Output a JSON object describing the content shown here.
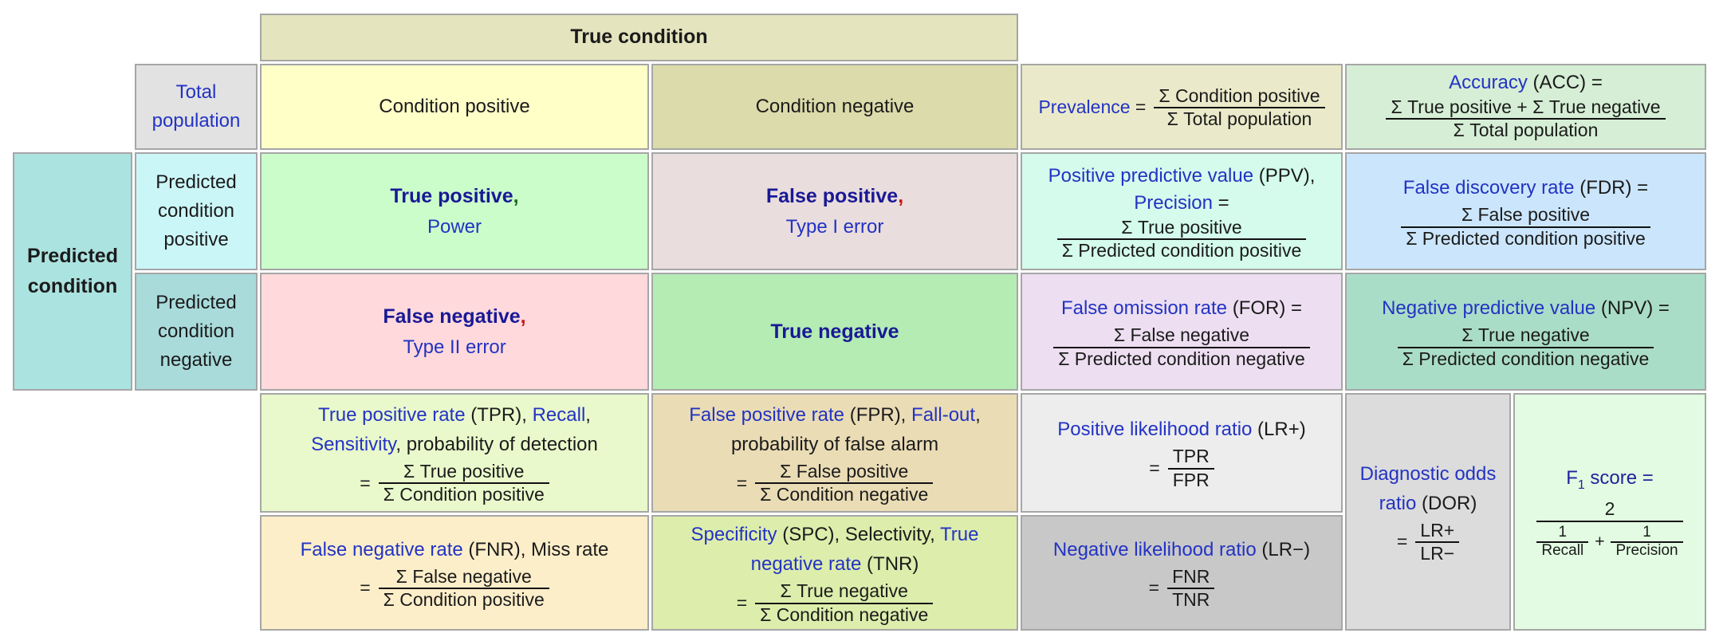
{
  "palette": {
    "border_gray": "#a6a6a6",
    "link_blue": "#2333c3",
    "term_navy": "#191995",
    "comma_red": "#cc1111",
    "comma_green": "#156915",
    "true_condition_bg": "#e4e4be",
    "total_population_bg": "#e2e2e2",
    "condition_positive_bg": "#ffffc8",
    "condition_negative_bg": "#dbdbab",
    "prevalence_bg": "#eaeaca",
    "accuracy_bg": "#d5eed5",
    "predicted_condition_bg": "#abe3e0",
    "predicted_positive_bg": "#cbf6f8",
    "predicted_negative_bg": "#a9dbdb",
    "true_positive_bg": "#cbfdcb",
    "false_positive_bg": "#eadddd",
    "false_negative_bg": "#ffd9dc",
    "true_negative_bg": "#b4ecb4",
    "ppv_bg": "#d4fbec",
    "fdr_bg": "#cbe6fc",
    "for_bg": "#eddff1",
    "npv_bg": "#aaddc8",
    "tpr_bg": "#e9f9cb",
    "fpr_bg": "#eadcb5",
    "fnr_bg": "#fceec9",
    "spc_bg": "#ddedac",
    "lr_pos_bg": "#ededed",
    "lr_neg_bg": "#c8c8c8",
    "dor_bg": "#dcdcdc",
    "f1_bg": "#e2fbe2"
  },
  "table": {
    "true_condition": "True condition",
    "predicted_condition": "Predicted condition",
    "total_population": "Total population",
    "condition_positive": "Condition positive",
    "condition_negative": "Condition negative",
    "predicted_positive": "Predicted condition positive",
    "predicted_negative": "Predicted condition negative",
    "prevalence": {
      "lead": [
        {
          "t": "Prevalence",
          "s": "link"
        },
        {
          "t": " = ",
          "s": "blk"
        }
      ],
      "num": "Σ Condition positive",
      "den": "Σ Total population"
    },
    "accuracy": {
      "title": [
        {
          "t": "Accuracy",
          "s": "link"
        },
        {
          "t": " (ACC) =",
          "s": "blk"
        }
      ],
      "num": "Σ True positive + Σ True negative",
      "den": "Σ Total population"
    },
    "tp": {
      "title": [
        {
          "t": "True positive",
          "s": "navy"
        },
        {
          "t": ",",
          "s": "green"
        }
      ],
      "sub": [
        {
          "t": "Power",
          "s": "link"
        }
      ]
    },
    "fp": {
      "title": [
        {
          "t": "False positive",
          "s": "navy"
        },
        {
          "t": ",",
          "s": "red"
        }
      ],
      "sub": [
        {
          "t": "Type I error",
          "s": "link"
        }
      ]
    },
    "fn": {
      "title": [
        {
          "t": "False negative",
          "s": "navy"
        },
        {
          "t": ",",
          "s": "red"
        }
      ],
      "sub": [
        {
          "t": "Type II error",
          "s": "link"
        }
      ]
    },
    "tn": {
      "title": [
        {
          "t": "True negative",
          "s": "navy"
        }
      ]
    },
    "ppv": {
      "line1": [
        {
          "t": "Positive predictive value",
          "s": "link"
        },
        {
          "t": " (PPV),",
          "s": "blk"
        }
      ],
      "line2": [
        {
          "t": "Precision",
          "s": "link"
        },
        {
          "t": " =",
          "s": "blk"
        }
      ],
      "num": "Σ True positive",
      "den": "Σ Predicted condition positive"
    },
    "fdr": {
      "title": [
        {
          "t": "False discovery rate",
          "s": "link"
        },
        {
          "t": " (FDR) =",
          "s": "blk"
        }
      ],
      "num": "Σ False positive",
      "den": "Σ Predicted condition positive"
    },
    "false_omission_rate": {
      "title": [
        {
          "t": "False omission rate",
          "s": "link"
        },
        {
          "t": " (FOR) =",
          "s": "blk"
        }
      ],
      "num": "Σ False negative",
      "den": "Σ Predicted condition negative"
    },
    "npv": {
      "title": [
        {
          "t": "Negative predictive value",
          "s": "link"
        },
        {
          "t": " (NPV) =",
          "s": "blk"
        }
      ],
      "num": "Σ True negative",
      "den": "Σ Predicted condition negative"
    },
    "tpr": {
      "line1": [
        {
          "t": "True positive rate",
          "s": "link"
        },
        {
          "t": " (TPR), ",
          "s": "blk"
        },
        {
          "t": "Recall",
          "s": "link"
        },
        {
          "t": ",",
          "s": "blk"
        }
      ],
      "line2": [
        {
          "t": "Sensitivity",
          "s": "link"
        },
        {
          "t": ", probability of detection",
          "s": "blk"
        }
      ],
      "eq": "=",
      "num": "Σ True positive",
      "den": "Σ Condition positive"
    },
    "fpr": {
      "line1": [
        {
          "t": "False positive rate",
          "s": "link"
        },
        {
          "t": " (FPR), ",
          "s": "blk"
        },
        {
          "t": "Fall-out",
          "s": "link"
        },
        {
          "t": ",",
          "s": "blk"
        }
      ],
      "line2": [
        {
          "t": "probability of false alarm",
          "s": "blk"
        }
      ],
      "eq": "=",
      "num": "Σ False positive",
      "den": "Σ Condition negative"
    },
    "fnr": {
      "line1": [
        {
          "t": "False negative rate",
          "s": "link"
        },
        {
          "t": " (FNR), Miss rate",
          "s": "blk"
        }
      ],
      "eq": "=",
      "num": "Σ False negative",
      "den": "Σ Condition positive"
    },
    "spc": {
      "line1": [
        {
          "t": "Specificity",
          "s": "link"
        },
        {
          "t": " (SPC), Selectivity, ",
          "s": "blk"
        },
        {
          "t": "True",
          "s": "link"
        }
      ],
      "line2": [
        {
          "t": "negative rate",
          "s": "link"
        },
        {
          "t": " (TNR)",
          "s": "blk"
        }
      ],
      "eq": "=",
      "num": "Σ True negative",
      "den": "Σ Condition negative"
    },
    "lr_pos": {
      "title": [
        {
          "t": "Positive likelihood ratio",
          "s": "link"
        },
        {
          "t": " (LR+)",
          "s": "blk"
        }
      ],
      "eq": "=",
      "num": "TPR",
      "den": "FPR"
    },
    "lr_neg": {
      "title": [
        {
          "t": "Negative likelihood ratio",
          "s": "link"
        },
        {
          "t": " (LR−)",
          "s": "blk"
        }
      ],
      "eq": "=",
      "num": "FNR",
      "den": "TNR"
    },
    "dor": {
      "line1": [
        {
          "t": "Diagnostic odds",
          "s": "link"
        }
      ],
      "line2": [
        {
          "t": "ratio",
          "s": "link"
        },
        {
          "t": " (DOR)",
          "s": "blk"
        }
      ],
      "eq": "=",
      "num": "LR+",
      "den": "LR−"
    },
    "f1": {
      "prefix": "F",
      "sub": "1",
      "rest": " score =",
      "num": "2",
      "den_left_num": "1",
      "den_left_den": "Recall",
      "plus": "+",
      "den_right_num": "1",
      "den_right_den": "Precision"
    }
  }
}
